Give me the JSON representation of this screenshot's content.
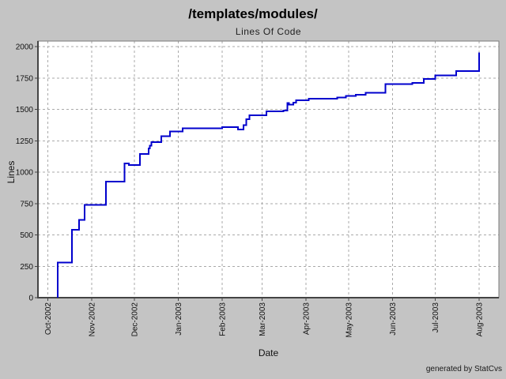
{
  "chart_data": {
    "type": "line",
    "style": "step",
    "title": "/templates/modules/",
    "subtitle": "Lines Of Code",
    "xlabel": "Date",
    "ylabel": "Lines",
    "credit": "generated by StatCvs",
    "grid": true,
    "legend": "none",
    "ylim": [
      0,
      2000
    ],
    "y_ticks": [
      0,
      250,
      500,
      750,
      1000,
      1250,
      1500,
      1750,
      2000
    ],
    "x_range": [
      "2002-09-24",
      "2003-08-15"
    ],
    "x_ticks": [
      {
        "label": "Oct-2002",
        "date": "2002-10-01"
      },
      {
        "label": "Nov-2002",
        "date": "2002-11-01"
      },
      {
        "label": "Dec-2002",
        "date": "2002-12-01"
      },
      {
        "label": "Jan-2003",
        "date": "2003-01-01"
      },
      {
        "label": "Feb-2003",
        "date": "2003-02-01"
      },
      {
        "label": "Mar-2003",
        "date": "2003-03-01"
      },
      {
        "label": "Apr-2003",
        "date": "2003-04-01"
      },
      {
        "label": "May-2003",
        "date": "2003-05-01"
      },
      {
        "label": "Jun-2003",
        "date": "2003-06-01"
      },
      {
        "label": "Jul-2003",
        "date": "2003-07-01"
      },
      {
        "label": "Aug-2003",
        "date": "2003-08-01"
      }
    ],
    "colors": {
      "background": "#c4c4c4",
      "plot_background": "#ffffff",
      "line": "#0000cd",
      "grid": "#aaaaaa",
      "border": "#7a7a7a",
      "axis": "#444444",
      "text": "#111111"
    },
    "series": [
      {
        "name": "Lines Of Code",
        "points": [
          [
            "2002-10-08",
            0
          ],
          [
            "2002-10-08",
            280
          ],
          [
            "2002-10-18",
            540
          ],
          [
            "2002-10-23",
            620
          ],
          [
            "2002-10-27",
            740
          ],
          [
            "2002-11-11",
            925
          ],
          [
            "2002-11-24",
            1070
          ],
          [
            "2002-11-27",
            1057
          ],
          [
            "2002-12-05",
            1145
          ],
          [
            "2002-12-11",
            1190
          ],
          [
            "2002-12-12",
            1212
          ],
          [
            "2002-12-13",
            1240
          ],
          [
            "2002-12-20",
            1285
          ],
          [
            "2002-12-26",
            1323
          ],
          [
            "2003-01-04",
            1350
          ],
          [
            "2003-02-01",
            1357
          ],
          [
            "2003-02-12",
            1340
          ],
          [
            "2003-02-16",
            1375
          ],
          [
            "2003-02-18",
            1420
          ],
          [
            "2003-02-20",
            1452
          ],
          [
            "2003-03-04",
            1484
          ],
          [
            "2003-03-16",
            1492
          ],
          [
            "2003-03-19",
            1550
          ],
          [
            "2003-03-20",
            1537
          ],
          [
            "2003-03-23",
            1555
          ],
          [
            "2003-03-25",
            1571
          ],
          [
            "2003-04-03",
            1585
          ],
          [
            "2003-04-23",
            1595
          ],
          [
            "2003-04-29",
            1606
          ],
          [
            "2003-05-06",
            1616
          ],
          [
            "2003-05-13",
            1631
          ],
          [
            "2003-05-27",
            1700
          ],
          [
            "2003-06-15",
            1711
          ],
          [
            "2003-06-23",
            1742
          ],
          [
            "2003-07-01",
            1769
          ],
          [
            "2003-07-16",
            1805
          ],
          [
            "2003-08-01",
            1952
          ]
        ]
      }
    ]
  }
}
